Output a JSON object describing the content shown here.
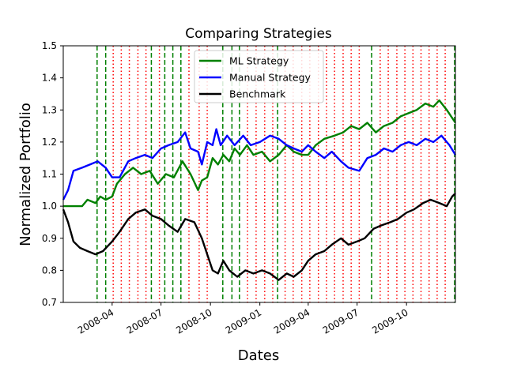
{
  "chart_data": {
    "type": "line",
    "title": "Comparing Strategies",
    "xlabel": "Dates",
    "ylabel": "Normalized Portfolio",
    "x_range": [
      "2008-01-01",
      "2009-12-31"
    ],
    "ylim": [
      0.7,
      1.5
    ],
    "y_ticks": [
      0.7,
      0.8,
      0.9,
      1.0,
      1.1,
      1.2,
      1.3,
      1.4,
      1.5
    ],
    "x_ticks": [
      {
        "date": "2008-04-01",
        "label": "2008-04"
      },
      {
        "date": "2008-07-01",
        "label": "2008-07"
      },
      {
        "date": "2008-10-01",
        "label": "2008-10"
      },
      {
        "date": "2009-01-01",
        "label": "2009-01"
      },
      {
        "date": "2009-04-01",
        "label": "2009-04"
      },
      {
        "date": "2009-07-01",
        "label": "2009-07"
      },
      {
        "date": "2009-10-01",
        "label": "2009-10"
      }
    ],
    "grid": false,
    "legend_position": "top-center",
    "series": [
      {
        "name": "ML Strategy",
        "color": "#008000",
        "points": [
          [
            "2008-01-01",
            1.0
          ],
          [
            "2008-02-05",
            1.0
          ],
          [
            "2008-02-15",
            1.02
          ],
          [
            "2008-03-01",
            1.01
          ],
          [
            "2008-03-10",
            1.03
          ],
          [
            "2008-03-20",
            1.02
          ],
          [
            "2008-04-01",
            1.03
          ],
          [
            "2008-04-10",
            1.07
          ],
          [
            "2008-04-25",
            1.1
          ],
          [
            "2008-05-10",
            1.12
          ],
          [
            "2008-05-25",
            1.1
          ],
          [
            "2008-06-10",
            1.11
          ],
          [
            "2008-06-25",
            1.07
          ],
          [
            "2008-07-10",
            1.1
          ],
          [
            "2008-07-25",
            1.09
          ],
          [
            "2008-08-10",
            1.14
          ],
          [
            "2008-08-25",
            1.1
          ],
          [
            "2008-09-08",
            1.05
          ],
          [
            "2008-09-15",
            1.08
          ],
          [
            "2008-09-25",
            1.09
          ],
          [
            "2008-10-05",
            1.15
          ],
          [
            "2008-10-15",
            1.13
          ],
          [
            "2008-10-25",
            1.16
          ],
          [
            "2008-11-05",
            1.14
          ],
          [
            "2008-11-15",
            1.18
          ],
          [
            "2008-11-25",
            1.16
          ],
          [
            "2008-12-08",
            1.19
          ],
          [
            "2008-12-20",
            1.16
          ],
          [
            "2009-01-05",
            1.17
          ],
          [
            "2009-01-20",
            1.14
          ],
          [
            "2009-02-05",
            1.16
          ],
          [
            "2009-02-20",
            1.19
          ],
          [
            "2009-03-05",
            1.17
          ],
          [
            "2009-03-20",
            1.16
          ],
          [
            "2009-04-01",
            1.16
          ],
          [
            "2009-04-15",
            1.19
          ],
          [
            "2009-05-01",
            1.21
          ],
          [
            "2009-05-20",
            1.22
          ],
          [
            "2009-06-05",
            1.23
          ],
          [
            "2009-06-20",
            1.25
          ],
          [
            "2009-07-05",
            1.24
          ],
          [
            "2009-07-20",
            1.26
          ],
          [
            "2009-08-05",
            1.23
          ],
          [
            "2009-08-20",
            1.25
          ],
          [
            "2009-09-05",
            1.26
          ],
          [
            "2009-09-20",
            1.28
          ],
          [
            "2009-10-05",
            1.29
          ],
          [
            "2009-10-20",
            1.3
          ],
          [
            "2009-11-05",
            1.32
          ],
          [
            "2009-11-20",
            1.31
          ],
          [
            "2009-12-01",
            1.33
          ],
          [
            "2009-12-15",
            1.3
          ],
          [
            "2009-12-31",
            1.26
          ]
        ]
      },
      {
        "name": "Manual Strategy",
        "color": "#0000ff",
        "points": [
          [
            "2008-01-01",
            1.02
          ],
          [
            "2008-01-10",
            1.05
          ],
          [
            "2008-01-20",
            1.11
          ],
          [
            "2008-02-05",
            1.12
          ],
          [
            "2008-02-20",
            1.13
          ],
          [
            "2008-03-05",
            1.14
          ],
          [
            "2008-03-20",
            1.12
          ],
          [
            "2008-04-01",
            1.09
          ],
          [
            "2008-04-15",
            1.09
          ],
          [
            "2008-05-01",
            1.14
          ],
          [
            "2008-05-15",
            1.15
          ],
          [
            "2008-06-01",
            1.16
          ],
          [
            "2008-06-15",
            1.15
          ],
          [
            "2008-07-01",
            1.18
          ],
          [
            "2008-07-15",
            1.19
          ],
          [
            "2008-08-01",
            1.2
          ],
          [
            "2008-08-15",
            1.23
          ],
          [
            "2008-08-25",
            1.18
          ],
          [
            "2008-09-08",
            1.17
          ],
          [
            "2008-09-15",
            1.13
          ],
          [
            "2008-09-25",
            1.2
          ],
          [
            "2008-10-05",
            1.19
          ],
          [
            "2008-10-12",
            1.24
          ],
          [
            "2008-10-20",
            1.19
          ],
          [
            "2008-11-01",
            1.22
          ],
          [
            "2008-11-15",
            1.19
          ],
          [
            "2008-12-01",
            1.22
          ],
          [
            "2008-12-15",
            1.19
          ],
          [
            "2009-01-01",
            1.2
          ],
          [
            "2009-01-20",
            1.22
          ],
          [
            "2009-02-05",
            1.21
          ],
          [
            "2009-02-20",
            1.19
          ],
          [
            "2009-03-05",
            1.18
          ],
          [
            "2009-03-20",
            1.17
          ],
          [
            "2009-04-01",
            1.19
          ],
          [
            "2009-04-15",
            1.17
          ],
          [
            "2009-05-01",
            1.15
          ],
          [
            "2009-05-15",
            1.17
          ],
          [
            "2009-06-01",
            1.14
          ],
          [
            "2009-06-15",
            1.12
          ],
          [
            "2009-07-05",
            1.11
          ],
          [
            "2009-07-20",
            1.15
          ],
          [
            "2009-08-05",
            1.16
          ],
          [
            "2009-08-20",
            1.18
          ],
          [
            "2009-09-05",
            1.17
          ],
          [
            "2009-09-20",
            1.19
          ],
          [
            "2009-10-05",
            1.2
          ],
          [
            "2009-10-20",
            1.19
          ],
          [
            "2009-11-05",
            1.21
          ],
          [
            "2009-11-20",
            1.2
          ],
          [
            "2009-12-05",
            1.22
          ],
          [
            "2009-12-20",
            1.19
          ],
          [
            "2009-12-31",
            1.16
          ]
        ]
      },
      {
        "name": "Benchmark",
        "color": "#000000",
        "points": [
          [
            "2008-01-01",
            0.99
          ],
          [
            "2008-01-10",
            0.95
          ],
          [
            "2008-01-20",
            0.89
          ],
          [
            "2008-02-01",
            0.87
          ],
          [
            "2008-02-15",
            0.86
          ],
          [
            "2008-03-01",
            0.85
          ],
          [
            "2008-03-15",
            0.86
          ],
          [
            "2008-04-01",
            0.89
          ],
          [
            "2008-04-15",
            0.92
          ],
          [
            "2008-05-01",
            0.96
          ],
          [
            "2008-05-15",
            0.98
          ],
          [
            "2008-06-01",
            0.99
          ],
          [
            "2008-06-15",
            0.97
          ],
          [
            "2008-07-01",
            0.96
          ],
          [
            "2008-07-15",
            0.94
          ],
          [
            "2008-08-01",
            0.92
          ],
          [
            "2008-08-15",
            0.96
          ],
          [
            "2008-09-01",
            0.95
          ],
          [
            "2008-09-15",
            0.9
          ],
          [
            "2008-09-25",
            0.85
          ],
          [
            "2008-10-05",
            0.8
          ],
          [
            "2008-10-15",
            0.79
          ],
          [
            "2008-10-25",
            0.83
          ],
          [
            "2008-11-05",
            0.8
          ],
          [
            "2008-11-20",
            0.78
          ],
          [
            "2008-12-05",
            0.8
          ],
          [
            "2008-12-20",
            0.79
          ],
          [
            "2009-01-05",
            0.8
          ],
          [
            "2009-01-20",
            0.79
          ],
          [
            "2009-02-05",
            0.77
          ],
          [
            "2009-02-20",
            0.79
          ],
          [
            "2009-03-05",
            0.78
          ],
          [
            "2009-03-20",
            0.8
          ],
          [
            "2009-04-01",
            0.83
          ],
          [
            "2009-04-15",
            0.85
          ],
          [
            "2009-05-01",
            0.86
          ],
          [
            "2009-05-15",
            0.88
          ],
          [
            "2009-06-01",
            0.9
          ],
          [
            "2009-06-15",
            0.88
          ],
          [
            "2009-07-01",
            0.89
          ],
          [
            "2009-07-15",
            0.9
          ],
          [
            "2009-08-01",
            0.93
          ],
          [
            "2009-08-15",
            0.94
          ],
          [
            "2009-09-01",
            0.95
          ],
          [
            "2009-09-15",
            0.96
          ],
          [
            "2009-10-01",
            0.98
          ],
          [
            "2009-10-15",
            0.99
          ],
          [
            "2009-11-01",
            1.01
          ],
          [
            "2009-11-15",
            1.02
          ],
          [
            "2009-12-01",
            1.01
          ],
          [
            "2009-12-15",
            1.0
          ],
          [
            "2009-12-25",
            1.03
          ],
          [
            "2009-12-31",
            1.04
          ]
        ]
      }
    ],
    "vlines_green_dashed": [
      "2008-03-04",
      "2008-03-20",
      "2008-06-13",
      "2008-07-08",
      "2008-07-23",
      "2008-08-07",
      "2008-10-24",
      "2008-11-10",
      "2008-11-24",
      "2009-02-03",
      "2009-07-28",
      "2009-12-31"
    ],
    "vlines_red_dotted": [
      "2008-04-03",
      "2008-04-18",
      "2008-05-03",
      "2008-05-19",
      "2008-06-03",
      "2008-06-28",
      "2008-08-22",
      "2008-09-10",
      "2008-09-25",
      "2008-12-09",
      "2008-12-25",
      "2009-01-10",
      "2009-01-25",
      "2009-02-17",
      "2009-03-04",
      "2009-03-20",
      "2009-04-04",
      "2009-04-20",
      "2009-05-05",
      "2009-05-20",
      "2009-06-05",
      "2009-06-20",
      "2009-07-05",
      "2009-08-13",
      "2009-08-28",
      "2009-09-13",
      "2009-09-28",
      "2009-10-13",
      "2009-10-28",
      "2009-11-12",
      "2009-11-27",
      "2009-12-12"
    ]
  }
}
